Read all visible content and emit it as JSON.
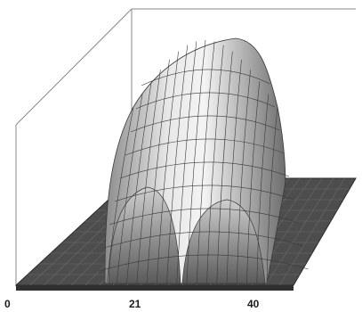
{
  "chart_data": {
    "type": "surface",
    "title": "",
    "xlabel": "",
    "ylabel": "",
    "x_ticks": [
      "0",
      "21",
      "40"
    ],
    "xlim": [
      0,
      48
    ],
    "grid": false,
    "legend": "none",
    "surface": {
      "description_shape": "single raised dome spanning roughly x 14 to 40, highest toward the back, flat floor elsewhere",
      "x_start": 14,
      "x_end": 40,
      "peak_x": 27
    },
    "colors": {
      "floor": "#4d4d4d",
      "floor_edge": "#2a2a2a",
      "surface_light": "#f2f2f2",
      "surface_dark": "#6b6b6b",
      "mesh": "#3a3a3a",
      "frame": "#8a8a8a"
    }
  }
}
